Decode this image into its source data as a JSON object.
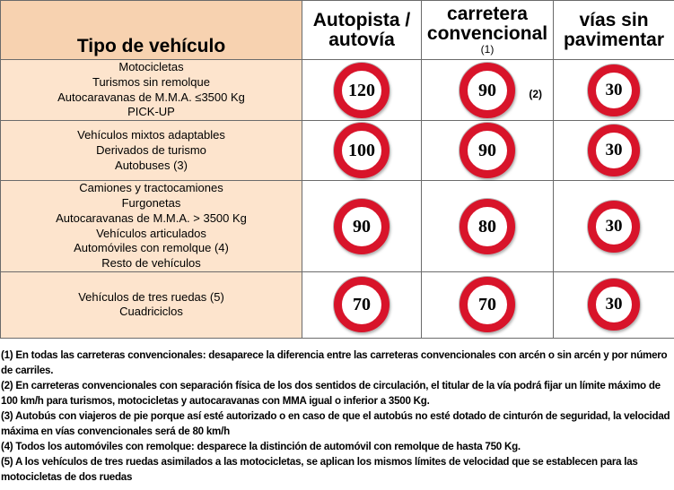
{
  "header": {
    "type_label": "Tipo de vehículo",
    "col1": "Autopista / autovía",
    "col2": "carretera convencional",
    "col2_note": "(1)",
    "col3": "vías sin pavimentar"
  },
  "rows": [
    {
      "vehicles": [
        "Motocicletas",
        "Turismos sin remolque",
        "Autocaravanas de M.M.A. ≤3500 Kg",
        "PICK-UP"
      ],
      "speeds": [
        "120",
        "90",
        "30"
      ],
      "note": "(2)"
    },
    {
      "vehicles": [
        "Vehículos mixtos adaptables",
        "Derivados de turismo",
        "Autobuses (3)"
      ],
      "speeds": [
        "100",
        "90",
        "30"
      ]
    },
    {
      "vehicles": [
        "Camiones y tractocamiones",
        "Furgonetas",
        "Autocaravanas de M.M.A. > 3500 Kg",
        "Vehículos articulados",
        "Automóviles con remolque (4)",
        "Resto de vehículos"
      ],
      "speeds": [
        "90",
        "80",
        "30"
      ]
    },
    {
      "vehicles": [
        "Vehículos de tres ruedas (5)",
        "Cuadriciclos"
      ],
      "speeds": [
        "70",
        "70",
        "30"
      ]
    }
  ],
  "footnotes": [
    "(1) En todas las carreteras convencionales: desaparece la diferencia entre las carreteras convencionales con arcén o sin arcén y por número de carriles.",
    "(2) En carreteras convencionales con separación física de los dos sentidos de circulación, el titular de la vía podrá fijar un límite máximo de 100 km/h para turismos, motocicletas y autocaravanas con MMA igual o inferior a 3500 Kg.",
    "(3) Autobús con viajeros de pie porque así esté autorizado o en caso de que el autobús no esté dotado de cinturón de seguridad, la velocidad máxima en vías convencionales será de 80 km/h",
    "(4) Todos los automóviles con remolque: desparece la distinción de automóvil con remolque de hasta 750 Kg.",
    "(5) A los vehículos de tres ruedas asimilados a las motocicletas, se aplican los mismos límites de velocidad que se establecen para las motocicletas de dos ruedas"
  ],
  "colors": {
    "sign_ring": "#d8142a",
    "type_header_bg": "#f7d2b0",
    "type_cell_bg": "#fde4cd"
  }
}
